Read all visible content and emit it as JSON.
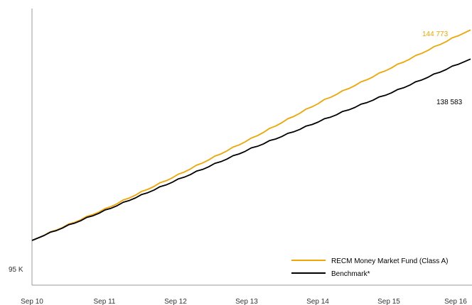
{
  "chart_data": {
    "type": "line",
    "title": "",
    "xlabel": "",
    "ylabel": "",
    "x": [
      "Sep 10",
      "Sep 11",
      "Sep 12",
      "Sep 13",
      "Sep 14",
      "Sep 15",
      "Sep 16"
    ],
    "x_ticks": [
      "Sep 10",
      "Sep 11",
      "Sep 12",
      "Sep 13",
      "Sep 14",
      "Sep 15",
      "Sep 16"
    ],
    "y_tick_labels": [
      "95 K"
    ],
    "ylim": [
      95000,
      150000
    ],
    "grid": false,
    "legend_position": "bottom-right",
    "series": [
      {
        "name": "RECM Money Market Fund (Class A)",
        "color": "#F0A500",
        "values": [
          100000,
          106600,
          113900,
          121600,
          129800,
          137300,
          144773
        ],
        "end_label": "144  773"
      },
      {
        "name": "Benchmark*",
        "color": "#000000",
        "values": [
          100000,
          106300,
          112900,
          119500,
          125700,
          131900,
          138583
        ],
        "end_label": "138  583"
      }
    ]
  }
}
